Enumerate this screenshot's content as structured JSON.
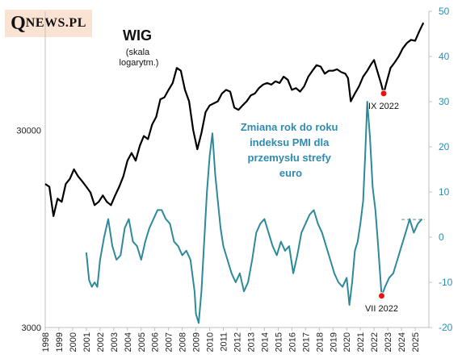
{
  "logo": {
    "q": "Q",
    "text": "NEWS.PL"
  },
  "chart_data": {
    "type": "line",
    "title": "WIG",
    "subtitle_lines": [
      "(skala",
      "logarytm.)"
    ],
    "annotation_lines": [
      "Zmiana rok do roku",
      "indeksu PMI dla",
      "przemysłu strefy",
      "euro"
    ],
    "markers": [
      {
        "label": "IX 2022",
        "series": "wig",
        "x": 2022.7
      },
      {
        "label": "VII 2022",
        "series": "pmi",
        "x": 2022.55
      }
    ],
    "x_ticks": [
      "1998",
      "1999",
      "2000",
      "2001",
      "2002",
      "2003",
      "2004",
      "2005",
      "2006",
      "2007",
      "2008",
      "2009",
      "2010",
      "2011",
      "2012",
      "2013",
      "2014",
      "2015",
      "2016",
      "2017",
      "2018",
      "2019",
      "2020",
      "2021",
      "2022",
      "2023",
      "2024",
      "2025"
    ],
    "xlim": [
      1998,
      2026
    ],
    "y_left": {
      "scale": "log",
      "ticks": [
        "3000",
        "30000"
      ],
      "lim": [
        3000,
        120000
      ]
    },
    "y_right": {
      "ticks": [
        "-20",
        "-10",
        "0",
        "10",
        "20",
        "30",
        "40",
        "50"
      ],
      "lim": [
        -20,
        50
      ]
    },
    "reference_line_right": 3.9,
    "colors": {
      "wig": "#000000",
      "pmi": "#2e8a9a",
      "text_accent": "#2f8bb0",
      "marker": "#ee1111"
    },
    "series": [
      {
        "id": "wig",
        "axis": "left",
        "x": [
          1998.0,
          1998.3,
          1998.6,
          1998.9,
          1999.2,
          1999.5,
          1999.8,
          2000.1,
          2000.4,
          2000.7,
          2001.0,
          2001.3,
          2001.6,
          2001.9,
          2002.2,
          2002.5,
          2002.8,
          2003.1,
          2003.4,
          2003.7,
          2004.0,
          2004.3,
          2004.6,
          2004.9,
          2005.2,
          2005.5,
          2005.8,
          2006.1,
          2006.4,
          2006.7,
          2007.0,
          2007.3,
          2007.6,
          2007.9,
          2008.2,
          2008.5,
          2008.8,
          2009.1,
          2009.4,
          2009.7,
          2010.0,
          2010.3,
          2010.6,
          2010.9,
          2011.2,
          2011.5,
          2011.8,
          2012.1,
          2012.4,
          2012.7,
          2013.0,
          2013.3,
          2013.6,
          2013.9,
          2014.2,
          2014.5,
          2014.8,
          2015.1,
          2015.4,
          2015.7,
          2016.0,
          2016.3,
          2016.6,
          2016.9,
          2017.2,
          2017.5,
          2017.8,
          2018.1,
          2018.4,
          2018.7,
          2019.0,
          2019.3,
          2019.6,
          2019.9,
          2020.1,
          2020.3,
          2020.6,
          2020.9,
          2021.2,
          2021.5,
          2021.8,
          2022.0,
          2022.2,
          2022.5,
          2022.7,
          2022.9,
          2023.2,
          2023.5,
          2023.8,
          2024.1,
          2024.4,
          2024.7,
          2025.0,
          2025.3,
          2025.6
        ],
        "values": [
          16000,
          15500,
          11000,
          13500,
          13000,
          16000,
          17000,
          19000,
          17500,
          16500,
          15500,
          14500,
          12500,
          13000,
          14000,
          13000,
          12500,
          14000,
          15500,
          17500,
          21000,
          23000,
          21000,
          25000,
          28000,
          27000,
          32000,
          35000,
          43000,
          44000,
          48000,
          52000,
          62000,
          60000,
          48000,
          42000,
          30000,
          24000,
          29000,
          37000,
          40000,
          41000,
          42000,
          46000,
          48000,
          47000,
          39000,
          38000,
          40000,
          42000,
          45000,
          46000,
          49000,
          51000,
          52000,
          51000,
          53000,
          52000,
          56000,
          54000,
          48000,
          49000,
          47000,
          50000,
          56000,
          60000,
          64000,
          63000,
          58000,
          60000,
          60000,
          61000,
          59000,
          58000,
          55000,
          42000,
          46000,
          50000,
          56000,
          60000,
          65000,
          68000,
          61000,
          52000,
          46000,
          52000,
          62000,
          66000,
          71000,
          78000,
          83000,
          86000,
          85000,
          95000,
          105000
        ]
      },
      {
        "id": "pmi",
        "axis": "right",
        "x": [
          2001.0,
          2001.2,
          2001.4,
          2001.6,
          2001.8,
          2002.0,
          2002.3,
          2002.6,
          2002.9,
          2003.2,
          2003.5,
          2003.8,
          2004.1,
          2004.4,
          2004.7,
          2005.0,
          2005.3,
          2005.6,
          2005.9,
          2006.2,
          2006.5,
          2006.8,
          2007.1,
          2007.4,
          2007.7,
          2008.0,
          2008.3,
          2008.6,
          2008.9,
          2009.0,
          2009.2,
          2009.4,
          2009.6,
          2009.8,
          2010.0,
          2010.2,
          2010.4,
          2010.6,
          2010.8,
          2011.0,
          2011.3,
          2011.6,
          2011.9,
          2012.2,
          2012.5,
          2012.8,
          2013.1,
          2013.4,
          2013.7,
          2014.0,
          2014.3,
          2014.6,
          2014.9,
          2015.2,
          2015.5,
          2015.8,
          2016.1,
          2016.4,
          2016.7,
          2017.0,
          2017.3,
          2017.6,
          2017.9,
          2018.2,
          2018.5,
          2018.8,
          2019.1,
          2019.4,
          2019.7,
          2020.0,
          2020.2,
          2020.4,
          2020.6,
          2020.8,
          2021.0,
          2021.2,
          2021.35,
          2021.5,
          2021.7,
          2021.9,
          2022.1,
          2022.3,
          2022.55,
          2022.8,
          2023.1,
          2023.4,
          2023.7,
          2024.0,
          2024.3,
          2024.6,
          2024.9,
          2025.2,
          2025.5
        ],
        "values": [
          -3.4,
          -9.5,
          -11,
          -10,
          -11,
          -5,
          0,
          4,
          -2,
          -5,
          -4,
          2,
          4,
          -1,
          -2,
          -5,
          -1,
          2,
          4,
          6,
          6,
          4,
          3,
          -1,
          -2,
          -4,
          -3,
          -5,
          -12,
          -17,
          -19,
          -12,
          -1,
          10,
          18,
          23,
          14,
          8,
          2,
          -2,
          -5,
          -8,
          -10,
          -8,
          -12,
          -10,
          -5,
          1,
          3,
          4,
          1,
          -2,
          -4,
          -1,
          -3,
          -2,
          -8,
          -4,
          1,
          3,
          5,
          6,
          3,
          1,
          -2,
          -5,
          -8,
          -10,
          -11,
          -9,
          -15,
          -10,
          -3,
          -1,
          3,
          8,
          18,
          30,
          22,
          11,
          6,
          -2,
          -13,
          -11,
          -9,
          -8,
          -5,
          -2,
          1,
          4,
          1,
          3,
          4
        ]
      }
    ]
  }
}
